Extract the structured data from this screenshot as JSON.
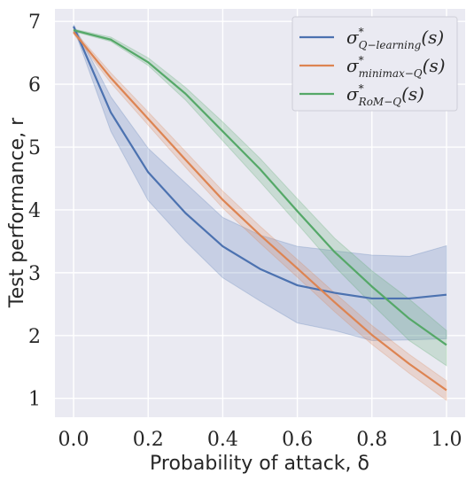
{
  "chart_data": {
    "type": "line",
    "title": "",
    "xlabel": "Probability of attack, δ",
    "ylabel": "Test performance, r",
    "xlim": [
      -0.05,
      1.05
    ],
    "ylim": [
      0.7,
      7.2
    ],
    "xticks": [
      "0.0",
      "0.2",
      "0.4",
      "0.6",
      "0.8",
      "1.0"
    ],
    "yticks": [
      "1",
      "2",
      "3",
      "4",
      "5",
      "6",
      "7"
    ],
    "grid": true,
    "legend_position": "top-right",
    "x": [
      0.0,
      0.1,
      0.2,
      0.3,
      0.4,
      0.5,
      0.6,
      0.7,
      0.8,
      0.9,
      1.0
    ],
    "series": [
      {
        "name": "σ*_{Q-learning}(s)",
        "legend_main": "σ",
        "legend_sup": "*",
        "legend_sub": "Q−learning",
        "legend_tail": "(s)",
        "color": "#4c72b0",
        "values": [
          6.92,
          5.55,
          4.6,
          3.95,
          3.42,
          3.06,
          2.8,
          2.68,
          2.59,
          2.59,
          2.65
        ],
        "lower": [
          6.9,
          5.25,
          4.15,
          3.5,
          2.92,
          2.55,
          2.2,
          2.08,
          1.92,
          1.93,
          1.95
        ],
        "upper": [
          6.95,
          5.8,
          4.98,
          4.43,
          3.88,
          3.6,
          3.42,
          3.35,
          3.28,
          3.26,
          3.43
        ]
      },
      {
        "name": "σ*_{minimax-Q}(s)",
        "legend_main": "σ",
        "legend_sup": "*",
        "legend_sub": "minimax−Q",
        "legend_tail": "(s)",
        "color": "#dd8452",
        "values": [
          6.83,
          6.1,
          5.45,
          4.8,
          4.16,
          3.6,
          3.07,
          2.53,
          2.01,
          1.55,
          1.13
        ],
        "lower": [
          6.8,
          6.02,
          5.35,
          4.68,
          4.03,
          3.47,
          2.93,
          2.38,
          1.86,
          1.4,
          0.97
        ],
        "upper": [
          6.86,
          6.18,
          5.56,
          4.93,
          4.3,
          3.74,
          3.21,
          2.68,
          2.16,
          1.7,
          1.28
        ]
      },
      {
        "name": "σ*_{RoM-Q}(s)",
        "legend_main": "σ",
        "legend_sup": "*",
        "legend_sub": "RoM−Q",
        "legend_tail": "(s)",
        "color": "#55a868",
        "values": [
          6.86,
          6.71,
          6.35,
          5.85,
          5.25,
          4.65,
          3.98,
          3.33,
          2.78,
          2.27,
          1.85
        ],
        "lower": [
          6.84,
          6.68,
          6.3,
          5.75,
          5.1,
          4.45,
          3.78,
          3.1,
          2.5,
          1.92,
          1.52
        ],
        "upper": [
          6.88,
          6.75,
          6.42,
          5.95,
          5.4,
          4.82,
          4.18,
          3.55,
          3.03,
          2.58,
          2.08
        ]
      }
    ]
  }
}
